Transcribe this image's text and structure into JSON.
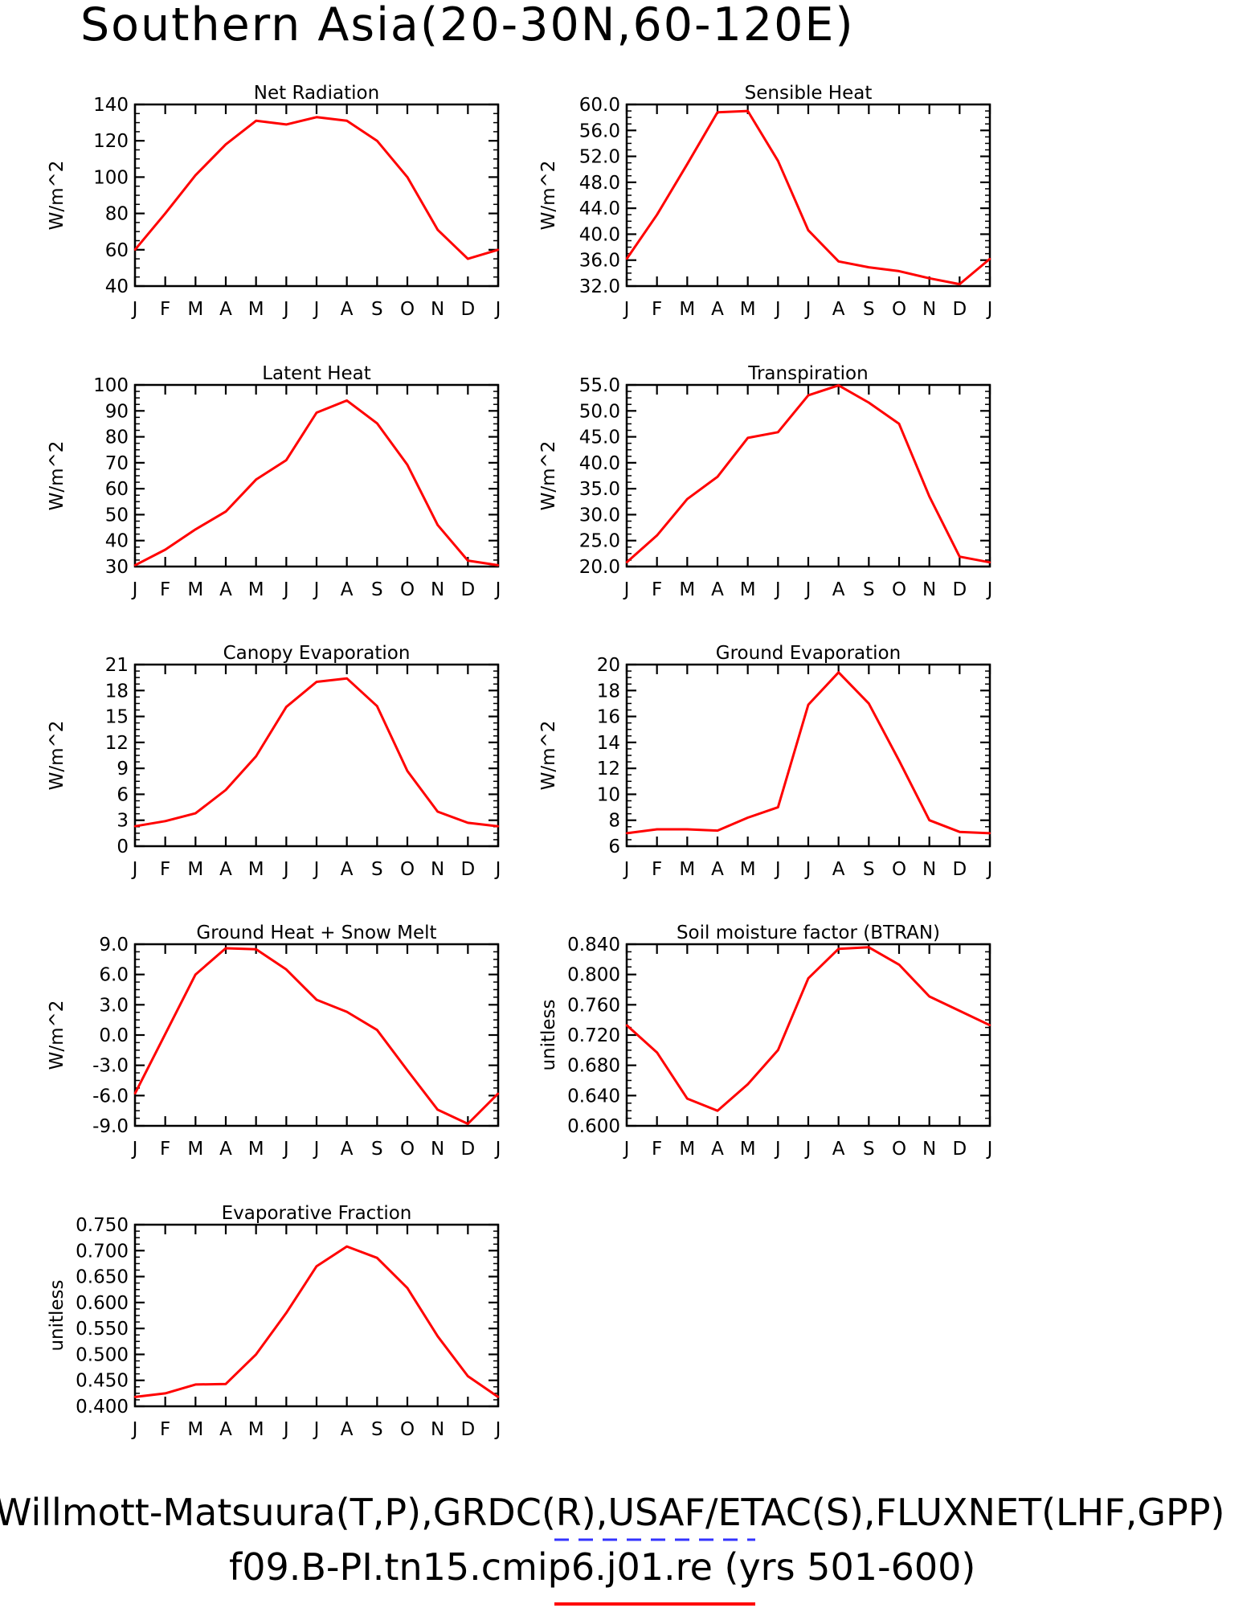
{
  "page": {
    "title": "Southern Asia(20-30N,60-120E)",
    "footer_line1": "Willmott-Matsuura(T,P),GRDC(R),USAF/ETAC(S),FLUXNET(LHF,GPP)",
    "footer_line2": "f09.B-PI.tn15.cmip6.j01.re (yrs 501-600)",
    "colors": {
      "line": "#ff0000",
      "legend_dash": "#3333ff",
      "axis": "#000000"
    }
  },
  "chart_data": [
    {
      "type": "line",
      "title": "Net Radiation",
      "ylabel": "W/m^2",
      "categories": [
        "J",
        "F",
        "M",
        "A",
        "M",
        "J",
        "J",
        "A",
        "S",
        "O",
        "N",
        "D",
        "J"
      ],
      "ylim": [
        40,
        140
      ],
      "yticks": [
        "40",
        "60",
        "80",
        "100",
        "120",
        "140"
      ],
      "series": [
        {
          "values": [
            60,
            80,
            101,
            118,
            131,
            129,
            133,
            131,
            120,
            100,
            71,
            55,
            60
          ]
        }
      ]
    },
    {
      "type": "line",
      "title": "Sensible Heat",
      "ylabel": "W/m^2",
      "categories": [
        "J",
        "F",
        "M",
        "A",
        "M",
        "J",
        "J",
        "A",
        "S",
        "O",
        "N",
        "D",
        "J"
      ],
      "ylim": [
        32,
        60
      ],
      "yticks": [
        "32.0",
        "36.0",
        "40.0",
        "44.0",
        "48.0",
        "52.0",
        "56.0",
        "60.0"
      ],
      "series": [
        {
          "values": [
            36.2,
            43.0,
            50.8,
            58.8,
            59.0,
            51.3,
            40.6,
            35.8,
            34.9,
            34.3,
            33.2,
            32.3,
            36.2
          ]
        }
      ]
    },
    {
      "type": "line",
      "title": "Latent Heat",
      "ylabel": "W/m^2",
      "categories": [
        "J",
        "F",
        "M",
        "A",
        "M",
        "J",
        "J",
        "A",
        "S",
        "O",
        "N",
        "D",
        "J"
      ],
      "ylim": [
        30,
        100
      ],
      "yticks": [
        "30",
        "40",
        "50",
        "60",
        "70",
        "80",
        "90",
        "100"
      ],
      "series": [
        {
          "values": [
            30.5,
            36.5,
            44.3,
            51.2,
            63.5,
            71.0,
            89.3,
            94.0,
            85.2,
            69.2,
            46.0,
            32.3,
            30.5
          ]
        }
      ]
    },
    {
      "type": "line",
      "title": "Transpiration",
      "ylabel": "W/m^2",
      "categories": [
        "J",
        "F",
        "M",
        "A",
        "M",
        "J",
        "J",
        "A",
        "S",
        "O",
        "N",
        "D",
        "J"
      ],
      "ylim": [
        20,
        55
      ],
      "yticks": [
        "20.0",
        "25.0",
        "30.0",
        "35.0",
        "40.0",
        "45.0",
        "50.0",
        "55.0"
      ],
      "series": [
        {
          "values": [
            20.8,
            26.0,
            33.0,
            37.3,
            44.8,
            45.9,
            53.0,
            54.9,
            51.6,
            47.5,
            33.5,
            21.9,
            20.8
          ]
        }
      ]
    },
    {
      "type": "line",
      "title": "Canopy Evaporation",
      "ylabel": "W/m^2",
      "categories": [
        "J",
        "F",
        "M",
        "A",
        "M",
        "J",
        "J",
        "A",
        "S",
        "O",
        "N",
        "D",
        "J"
      ],
      "ylim": [
        0,
        21
      ],
      "yticks": [
        "0",
        "3",
        "6",
        "9",
        "12",
        "15",
        "18",
        "21"
      ],
      "series": [
        {
          "values": [
            2.3,
            2.9,
            3.8,
            6.5,
            10.4,
            16.1,
            19.0,
            19.4,
            16.2,
            8.7,
            4.0,
            2.7,
            2.3
          ]
        }
      ]
    },
    {
      "type": "line",
      "title": "Ground Evaporation",
      "ylabel": "W/m^2",
      "categories": [
        "J",
        "F",
        "M",
        "A",
        "M",
        "J",
        "J",
        "A",
        "S",
        "O",
        "N",
        "D",
        "J"
      ],
      "ylim": [
        6,
        20
      ],
      "yticks": [
        "6",
        "8",
        "10",
        "12",
        "14",
        "16",
        "18",
        "20"
      ],
      "series": [
        {
          "values": [
            7.0,
            7.3,
            7.3,
            7.2,
            8.2,
            9.0,
            16.9,
            19.4,
            17.0,
            12.6,
            8.0,
            7.1,
            7.0
          ]
        }
      ]
    },
    {
      "type": "line",
      "title": "Ground Heat + Snow Melt",
      "ylabel": "W/m^2",
      "categories": [
        "J",
        "F",
        "M",
        "A",
        "M",
        "J",
        "J",
        "A",
        "S",
        "O",
        "N",
        "D",
        "J"
      ],
      "ylim": [
        -9,
        9
      ],
      "yticks": [
        "-9.0",
        "-6.0",
        "-3.0",
        "0.0",
        "3.0",
        "6.0",
        "9.0"
      ],
      "series": [
        {
          "values": [
            -5.8,
            0.1,
            6.0,
            8.6,
            8.5,
            6.5,
            3.5,
            2.3,
            0.5,
            -3.5,
            -7.4,
            -8.8,
            -5.8
          ]
        }
      ]
    },
    {
      "type": "line",
      "title": "Soil moisture factor (BTRAN)",
      "ylabel": "unitless",
      "categories": [
        "J",
        "F",
        "M",
        "A",
        "M",
        "J",
        "J",
        "A",
        "S",
        "O",
        "N",
        "D",
        "J"
      ],
      "ylim": [
        0.6,
        0.84
      ],
      "yticks": [
        "0.600",
        "0.640",
        "0.680",
        "0.720",
        "0.760",
        "0.800",
        "0.840"
      ],
      "series": [
        {
          "values": [
            0.733,
            0.697,
            0.636,
            0.62,
            0.655,
            0.7,
            0.795,
            0.834,
            0.836,
            0.813,
            0.771,
            0.752,
            0.733
          ]
        }
      ]
    },
    {
      "type": "line",
      "title": "Evaporative Fraction",
      "ylabel": "unitless",
      "categories": [
        "J",
        "F",
        "M",
        "A",
        "M",
        "J",
        "J",
        "A",
        "S",
        "O",
        "N",
        "D",
        "J"
      ],
      "ylim": [
        0.4,
        0.75
      ],
      "yticks": [
        "0.400",
        "0.450",
        "0.500",
        "0.550",
        "0.600",
        "0.650",
        "0.700",
        "0.750"
      ],
      "series": [
        {
          "values": [
            0.418,
            0.425,
            0.442,
            0.443,
            0.5,
            0.58,
            0.67,
            0.708,
            0.686,
            0.628,
            0.535,
            0.458,
            0.418
          ]
        }
      ]
    }
  ]
}
